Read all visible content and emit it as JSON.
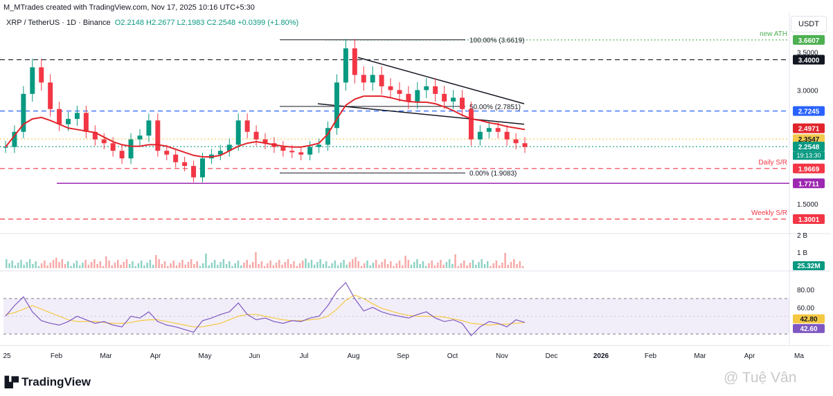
{
  "header": {
    "creator": "M_MTrades created with TradingView.com, Nov 17, 2025 10:16 UTC+5:30"
  },
  "symbol": {
    "name": "XRP / TetherUS · 1D · Binance",
    "open": "O2.2148",
    "high": "H2.2677",
    "low": "L2.1983",
    "close": "C2.2548",
    "change": "+0.0399 (+1.80%)"
  },
  "currency_button": "USDT",
  "branding": {
    "logo": "TradingView",
    "watermark": "@ Tuệ Vân"
  },
  "colors": {
    "up": "#089981",
    "down": "#f23645",
    "ema": "#e0242b",
    "rsi": "#7e57c2",
    "rsi_ma": "#f5c842",
    "blue_level": "#2962ff",
    "purple_level": "#9c27b0",
    "ath": "#4caf50",
    "black_level": "#131722"
  },
  "chart_data": [
    {
      "type": "candlestick",
      "title": "XRP / TetherUS · 1D · Binance",
      "ylim": [
        1.2,
        3.75
      ],
      "x_ticks": [
        "25",
        "Feb",
        "Mar",
        "Apr",
        "May",
        "Jun",
        "Jul",
        "Aug",
        "Sep",
        "Oct",
        "Nov",
        "Dec",
        "2026",
        "Feb",
        "Mar",
        "Apr",
        "Ma"
      ],
      "y_ticks": [
        "3.5000",
        "3.0000",
        "2.5000",
        "2.0000",
        "1.5000"
      ],
      "close_series": [
        2.25,
        2.45,
        2.95,
        3.3,
        3.1,
        2.75,
        2.55,
        2.62,
        2.7,
        2.45,
        2.35,
        2.3,
        2.2,
        2.1,
        2.35,
        2.4,
        2.6,
        2.2,
        2.15,
        2.05,
        2.0,
        1.85,
        2.1,
        2.15,
        2.2,
        2.28,
        2.6,
        2.45,
        2.35,
        2.3,
        2.25,
        2.2,
        2.18,
        2.15,
        2.25,
        2.28,
        2.5,
        3.1,
        3.55,
        3.2,
        3.1,
        3.2,
        3.05,
        3.0,
        2.95,
        2.85,
        3.0,
        3.05,
        2.95,
        2.85,
        2.9,
        2.75,
        2.35,
        2.45,
        2.5,
        2.45,
        2.35,
        2.3,
        2.25
      ],
      "ema": [
        2.25,
        2.4,
        2.55,
        2.62,
        2.64,
        2.6,
        2.55,
        2.5,
        2.48,
        2.46,
        2.44,
        2.38,
        2.32,
        2.28,
        2.26,
        2.26,
        2.28,
        2.28,
        2.26,
        2.22,
        2.18,
        2.14,
        2.12,
        2.12,
        2.14,
        2.2,
        2.26,
        2.3,
        2.32,
        2.3,
        2.28,
        2.26,
        2.25,
        2.25,
        2.27,
        2.3,
        2.42,
        2.62,
        2.8,
        2.88,
        2.92,
        2.92,
        2.92,
        2.9,
        2.87,
        2.85,
        2.84,
        2.84,
        2.82,
        2.78,
        2.73,
        2.67,
        2.62,
        2.6,
        2.57,
        2.55,
        2.52,
        2.5,
        2.48
      ],
      "levels": [
        {
          "label": "3.6607",
          "note": "new ATH",
          "value": 3.6607,
          "style": "dotted",
          "color": "#4caf50"
        },
        {
          "label": "3.4000",
          "value": 3.4,
          "style": "dashed",
          "color": "#131722"
        },
        {
          "label": "2.7245",
          "value": 2.7245,
          "style": "dashed",
          "color": "#2962ff"
        },
        {
          "label": "2.4971",
          "value": 2.4971,
          "style": "none",
          "color": "#e0242b"
        },
        {
          "label": "2.3547",
          "value": 2.3547,
          "style": "dotted",
          "color": "#f2c94c"
        },
        {
          "label": "2.2548",
          "value": 2.2548,
          "style": "dotted",
          "color": "#089981",
          "extra": "19:13:30"
        },
        {
          "label": "1.9669",
          "note": "Daily S/R",
          "value": 1.9669,
          "style": "dashed",
          "color": "#f23645"
        },
        {
          "label": "1.7711",
          "value": 1.7711,
          "style": "solid",
          "color": "#9c27b0"
        },
        {
          "label": "1.3001",
          "note": "Weekly S/R",
          "value": 1.3001,
          "style": "dashed",
          "color": "#f23645"
        }
      ],
      "fib": [
        {
          "label": "100.00% (3.6619)",
          "value": 3.6619
        },
        {
          "label": "50.00% (2.7851)",
          "value": 2.7851
        },
        {
          "label": "0.00% (1.9083)",
          "value": 1.9083
        }
      ]
    },
    {
      "type": "bar",
      "title": "Volume",
      "y_ticks": [
        "2 B",
        "1 B"
      ],
      "current": "25.32M"
    },
    {
      "type": "line",
      "title": "RSI",
      "ylim": [
        20,
        95
      ],
      "y_ticks": [
        "80.00",
        "60.00"
      ],
      "bands": [
        70,
        30
      ],
      "rsi_value": "42.60",
      "rsi_ma_value": "42.80",
      "rsi": [
        50,
        62,
        72,
        55,
        45,
        42,
        40,
        44,
        50,
        46,
        42,
        44,
        40,
        38,
        50,
        48,
        55,
        44,
        40,
        38,
        35,
        32,
        45,
        48,
        52,
        55,
        65,
        52,
        46,
        48,
        44,
        42,
        45,
        44,
        48,
        50,
        62,
        78,
        88,
        70,
        56,
        60,
        55,
        52,
        50,
        48,
        52,
        55,
        48,
        44,
        46,
        42,
        28,
        38,
        44,
        42,
        38,
        46,
        43
      ],
      "rsi_ma": [
        52,
        54,
        58,
        62,
        58,
        54,
        50,
        46,
        44,
        44,
        44,
        43,
        42,
        42,
        43,
        45,
        46,
        46,
        44,
        42,
        40,
        38,
        38,
        40,
        42,
        46,
        50,
        52,
        52,
        50,
        48,
        46,
        45,
        45,
        46,
        47,
        50,
        58,
        68,
        74,
        70,
        64,
        59,
        56,
        53,
        51,
        50,
        50,
        50,
        49,
        47,
        45,
        42,
        41,
        40,
        41,
        41,
        42,
        43
      ]
    }
  ]
}
